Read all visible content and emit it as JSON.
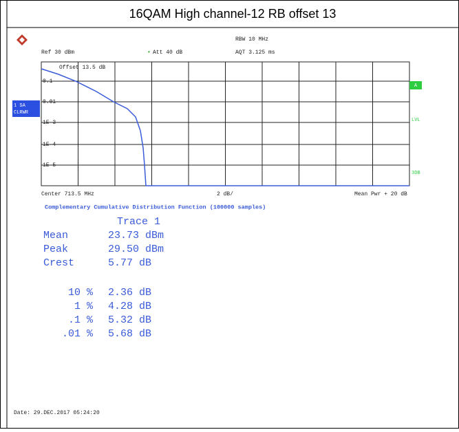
{
  "header": {
    "title": "16QAM High channel-12 RB offset 13"
  },
  "screen": {
    "rbw": "RBW 10 MHz",
    "ref": "Ref 30 dBm",
    "att": "Att 40 dB",
    "aqt": "AQT 3.125 ms",
    "offset": "Offset 13.5 dB",
    "y_labels": [
      "0.1",
      "0.01",
      "1E-3",
      "1E-4",
      "1E-5"
    ],
    "trace_box": [
      "1 SA",
      "CLRWR"
    ],
    "right_labels": [
      "A",
      "LVL",
      "3DB"
    ],
    "center": "Center 713.5 MHz",
    "scale": "2 dB/",
    "mean_pwr": "Mean Pwr + 20 dB",
    "ccdf_title": "Complementary Cumulative Distribution Function (100000 samples)",
    "trace": "Trace 1",
    "results": [
      [
        "Mean",
        "23.73 dBm"
      ],
      [
        "Peak",
        "29.50 dBm"
      ],
      [
        "Crest",
        "5.77 dB"
      ]
    ],
    "percentiles": [
      [
        "10 %",
        "2.36 dB"
      ],
      [
        "1 %",
        "4.28 dB"
      ],
      [
        ".1 %",
        "5.32 dB"
      ],
      [
        ".01 %",
        "5.68 dB"
      ]
    ],
    "date": "Date: 29.DEC.2017  05:24:20"
  }
}
